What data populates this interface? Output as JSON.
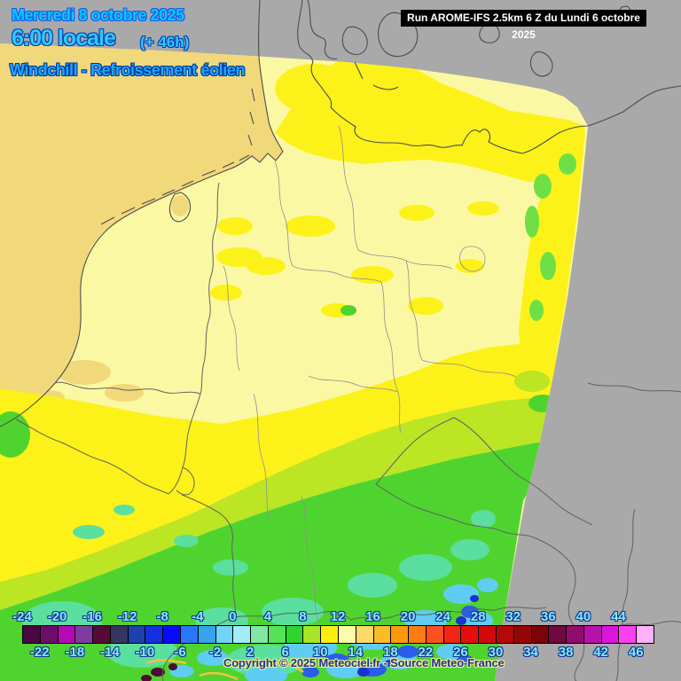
{
  "header": {
    "date": "Mercredi 8 octobre 2025",
    "time": "6:00 locale",
    "offset": "(+ 46h)",
    "subtitle": "Windchill - Refroissement éolien",
    "run": "Run AROME-IFS 2.5km 6 Z du Lundi 6 octobre 2025"
  },
  "footer": {
    "copyright": "Copyright © 2025 Meteociel.fr - Source Meteo-France"
  },
  "colorbar": {
    "min": -24,
    "step": 2,
    "top_labels": [
      "-24",
      "-20",
      "-16",
      "-12",
      "-8",
      "-4",
      "0",
      "4",
      "8",
      "12",
      "16",
      "20",
      "24",
      "28",
      "32",
      "36",
      "40",
      "44"
    ],
    "bottom_labels": [
      "-22",
      "-18",
      "-14",
      "-10",
      "-6",
      "-2",
      "2",
      "6",
      "10",
      "14",
      "18",
      "22",
      "26",
      "30",
      "34",
      "38",
      "42",
      "46"
    ],
    "cell_colors": [
      "#47093f",
      "#6e0c6c",
      "#b409b4",
      "#7e3ba2",
      "#570a38",
      "#35355f",
      "#1e41b0",
      "#1231dc",
      "#0a0afa",
      "#2877fa",
      "#37a3ee",
      "#6fd4f8",
      "#a2ecfc",
      "#7fe9a4",
      "#55e455",
      "#2fd42f",
      "#a8e427",
      "#fdee12",
      "#fdfcab",
      "#fcd968",
      "#fcbc2a",
      "#fc9a0c",
      "#fc7b14",
      "#fb501f",
      "#f22613",
      "#e60d0d",
      "#d20909",
      "#b40707",
      "#960505",
      "#7a0408",
      "#6e0a3e",
      "#920c6e",
      "#b812ac",
      "#da16da",
      "#fb40f0",
      "#fdb0fb"
    ],
    "label_color": "#86e9fb",
    "label_outline": "#14368e"
  },
  "map": {
    "palette": {
      "gray": "#a9a9a9",
      "pale": "#fbf8a4",
      "gold": "#f1d87a",
      "bright": "#fcf219",
      "yg": "#bce524",
      "green": "#4fd42f",
      "lgreen": "#6ee046",
      "mint": "#5bdf9e",
      "cyan": "#5fcdf2",
      "blue": "#2b5cea",
      "navy": "#1b31d2",
      "maroon": "#500a35",
      "valley": "#f2c23e",
      "coast": "#4c4c4c",
      "border": "#616161",
      "state": "#8f8f8f"
    }
  }
}
